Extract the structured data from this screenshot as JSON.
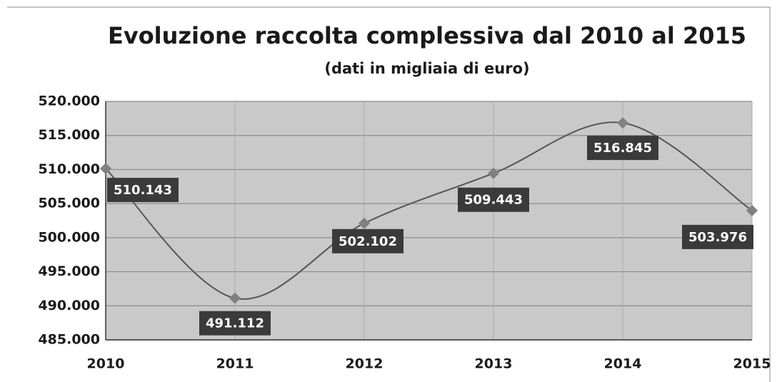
{
  "chart_data": {
    "type": "line",
    "title": "Evoluzione raccolta complessiva dal 2010 al 2015",
    "subtitle": "(dati in migliaia di euro)",
    "x": [
      2010,
      2011,
      2012,
      2013,
      2014,
      2015
    ],
    "series": [
      {
        "color": "#555555",
        "marker_color": "#808080",
        "values": [
          510143,
          491112,
          502102,
          509443,
          516845,
          503976
        ],
        "value_labels": [
          "510.143",
          "491.112",
          "502.102",
          "509.443",
          "516.845",
          "503.976"
        ]
      }
    ],
    "xlim": [
      2010,
      2015
    ],
    "xticks": [
      2010,
      2011,
      2012,
      2013,
      2014,
      2015
    ],
    "ylim": [
      485000,
      520000
    ],
    "yticks": [
      {
        "value": 485000,
        "label": "485.000"
      },
      {
        "value": 490000,
        "label": "490.000"
      },
      {
        "value": 495000,
        "label": "495.000"
      },
      {
        "value": 500000,
        "label": "500.000"
      },
      {
        "value": 505000,
        "label": "505.000"
      },
      {
        "value": 510000,
        "label": "510.000"
      },
      {
        "value": 515000,
        "label": "515.000"
      },
      {
        "value": 520000,
        "label": "520.000"
      }
    ],
    "grid": true
  }
}
